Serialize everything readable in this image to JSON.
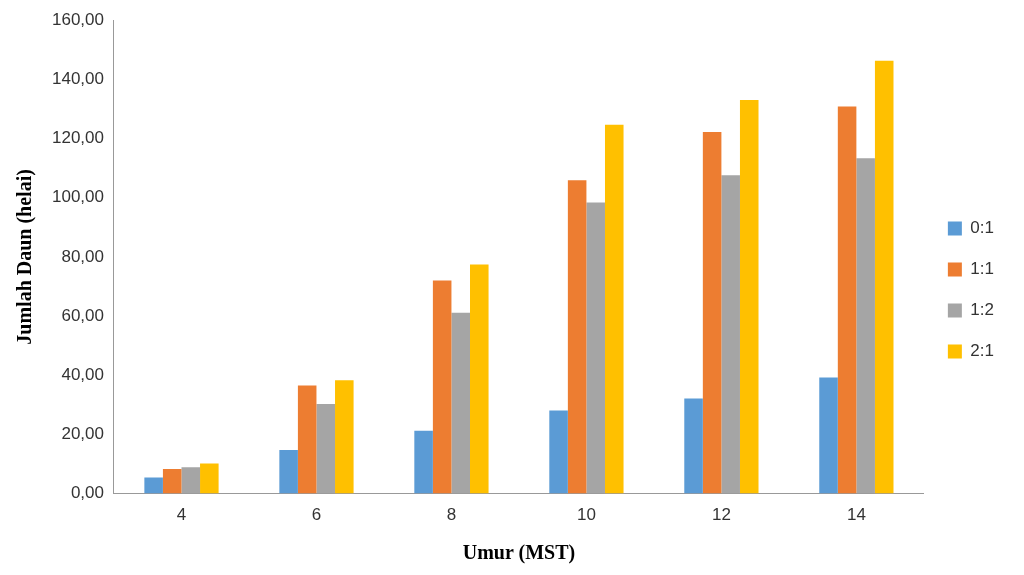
{
  "chart_data": {
    "type": "bar",
    "xlabel": "Umur (MST)",
    "ylabel": "Jumlah Daun (helai)",
    "categories": [
      "4",
      "6",
      "8",
      "10",
      "12",
      "14"
    ],
    "series": [
      {
        "name": "0:1",
        "color": "#5b9bd5",
        "values": [
          5.4,
          14.7,
          21.2,
          28.1,
          32.1,
          39.2
        ]
      },
      {
        "name": "1:1",
        "color": "#ed7d31",
        "values": [
          8.3,
          36.5,
          72.0,
          105.9,
          122.2,
          130.8
        ]
      },
      {
        "name": "1:2",
        "color": "#a5a5a5",
        "values": [
          8.9,
          30.3,
          61.1,
          98.4,
          107.6,
          113.3
        ]
      },
      {
        "name": "2:1",
        "color": "#ffc000",
        "values": [
          10.2,
          38.3,
          77.4,
          124.7,
          133.0,
          146.3
        ]
      }
    ],
    "ylim": [
      0,
      160
    ],
    "yticks": [
      {
        "value": 0,
        "label": "0,00"
      },
      {
        "value": 20,
        "label": "20,00"
      },
      {
        "value": 40,
        "label": "40,00"
      },
      {
        "value": 60,
        "label": "60,00"
      },
      {
        "value": 80,
        "label": "80,00"
      },
      {
        "value": 100,
        "label": "100,00"
      },
      {
        "value": 120,
        "label": "120,00"
      },
      {
        "value": 140,
        "label": "140,00"
      },
      {
        "value": 160,
        "label": "160,00"
      }
    ],
    "grid": false,
    "legend": "right"
  }
}
